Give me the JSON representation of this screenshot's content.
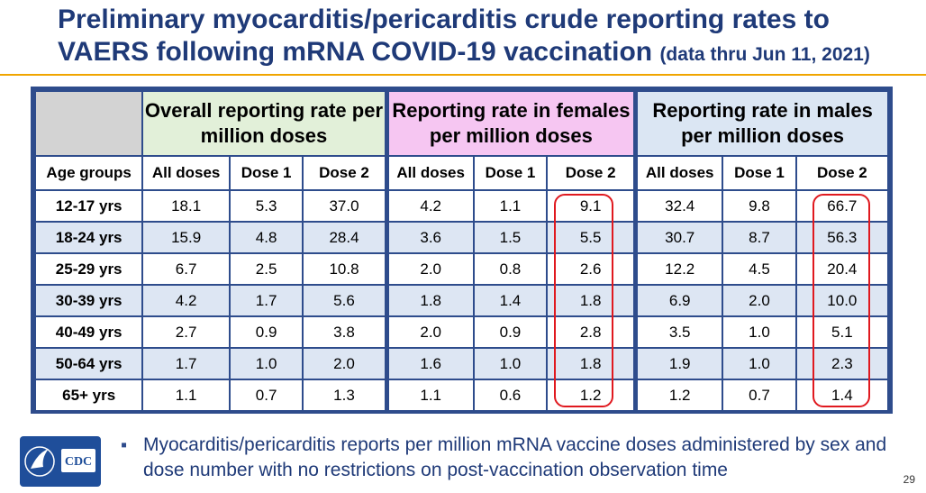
{
  "title": {
    "main": "Preliminary myocarditis/pericarditis crude reporting rates to VAERS following mRNA COVID-19 vaccination",
    "sub": "(data thru Jun 11, 2021)"
  },
  "table": {
    "groups": [
      "Overall reporting rate per million doses",
      "Reporting rate in females per million doses",
      "Reporting rate in males per million doses"
    ],
    "columns": [
      "Age groups",
      "All doses",
      "Dose 1",
      "Dose 2",
      "All doses",
      "Dose 1",
      "Dose 2",
      "All doses",
      "Dose 1",
      "Dose 2"
    ],
    "rows": [
      [
        "12-17 yrs",
        "18.1",
        "5.3",
        "37.0",
        "4.2",
        "1.1",
        "9.1",
        "32.4",
        "9.8",
        "66.7"
      ],
      [
        "18-24 yrs",
        "15.9",
        "4.8",
        "28.4",
        "3.6",
        "1.5",
        "5.5",
        "30.7",
        "8.7",
        "56.3"
      ],
      [
        "25-29 yrs",
        "6.7",
        "2.5",
        "10.8",
        "2.0",
        "0.8",
        "2.6",
        "12.2",
        "4.5",
        "20.4"
      ],
      [
        "30-39 yrs",
        "4.2",
        "1.7",
        "5.6",
        "1.8",
        "1.4",
        "1.8",
        "6.9",
        "2.0",
        "10.0"
      ],
      [
        "40-49 yrs",
        "2.7",
        "0.9",
        "3.8",
        "2.0",
        "0.9",
        "2.8",
        "3.5",
        "1.0",
        "5.1"
      ],
      [
        "50-64 yrs",
        "1.7",
        "1.0",
        "2.0",
        "1.6",
        "1.0",
        "1.8",
        "1.9",
        "1.0",
        "2.3"
      ],
      [
        "65+ yrs",
        "1.1",
        "0.7",
        "1.3",
        "1.1",
        "0.6",
        "1.2",
        "1.2",
        "0.7",
        "1.4"
      ]
    ]
  },
  "bullet": "Myocarditis/pericarditis reports per million mRNA vaccine doses administered by sex and dose number with no restrictions on post-vaccination observation time",
  "logo": {
    "text": "CDC",
    "icon": "hhs-eagle-icon"
  },
  "page_number": "29",
  "colors": {
    "title": "#1f3a78",
    "accent_rule": "#f0a500",
    "highlight": "#e0191f"
  }
}
